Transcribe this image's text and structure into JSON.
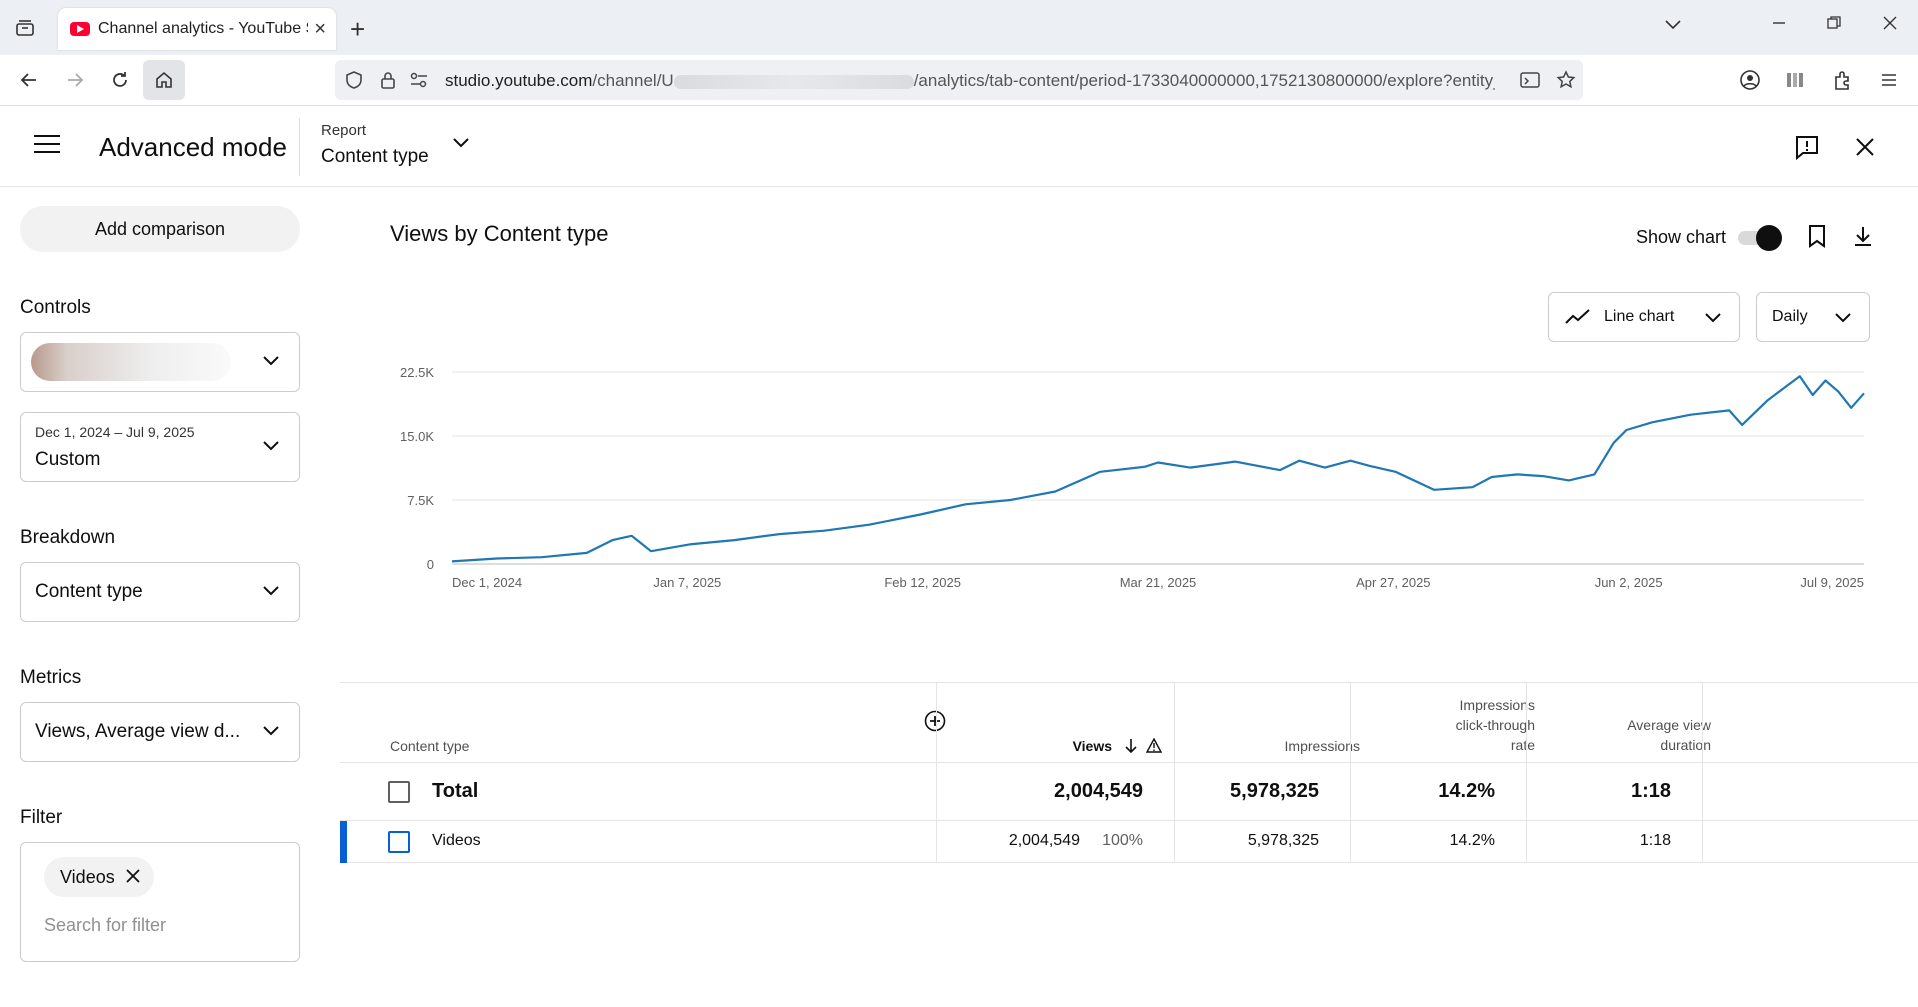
{
  "browser": {
    "tab_title": "Channel analytics - YouTube Studio",
    "url_host": "studio.youtube.com",
    "url_prefix": "/channel/U",
    "url_suffix": "/analytics/tab-content/period-1733040000000,1752130800000/explore?entity_"
  },
  "header": {
    "title": "Advanced mode",
    "report_label": "Report",
    "report_value": "Content type"
  },
  "sidebar": {
    "add_comparison": "Add comparison",
    "controls_label": "Controls",
    "date_range_caption": "Dec 1, 2024 – Jul 9, 2025",
    "date_range_value": "Custom",
    "breakdown_label": "Breakdown",
    "breakdown_value": "Content type",
    "metrics_label": "Metrics",
    "metrics_value": "Views, Average view d...",
    "filter_label": "Filter",
    "filter_chip": "Videos",
    "filter_placeholder": "Search for filter"
  },
  "main": {
    "title": "Views by Content type",
    "show_chart_label": "Show chart",
    "show_chart_on": true,
    "chart_type": "Line chart",
    "period": "Daily"
  },
  "chart_data": {
    "type": "line",
    "title": "",
    "xlabel": "",
    "ylabel": "",
    "ylim": [
      0,
      22500
    ],
    "y_ticks": [
      "0",
      "7.5K",
      "15.0K",
      "22.5K"
    ],
    "y_tick_values": [
      0,
      7500,
      15000,
      22500
    ],
    "x_ticks": [
      "Dec 1, 2024",
      "Jan 7, 2025",
      "Feb 12, 2025",
      "Mar 21, 2025",
      "Apr 27, 2025",
      "Jun 2, 2025",
      "Jul 9, 2025"
    ],
    "x_range": [
      "2024-12-01",
      "2025-07-09"
    ],
    "grid": true,
    "color": "#1f77b4",
    "series": [
      {
        "name": "",
        "x": [
          "2024-12-01",
          "2024-12-08",
          "2024-12-15",
          "2024-12-22",
          "2024-12-26",
          "2024-12-29",
          "2025-01-01",
          "2025-01-07",
          "2025-01-14",
          "2025-01-21",
          "2025-01-28",
          "2025-02-04",
          "2025-02-12",
          "2025-02-19",
          "2025-02-26",
          "2025-03-05",
          "2025-03-12",
          "2025-03-19",
          "2025-03-21",
          "2025-03-26",
          "2025-04-02",
          "2025-04-09",
          "2025-04-12",
          "2025-04-16",
          "2025-04-20",
          "2025-04-23",
          "2025-04-27",
          "2025-05-03",
          "2025-05-09",
          "2025-05-12",
          "2025-05-16",
          "2025-05-20",
          "2025-05-24",
          "2025-05-28",
          "2025-05-31",
          "2025-06-02",
          "2025-06-06",
          "2025-06-12",
          "2025-06-18",
          "2025-06-20",
          "2025-06-24",
          "2025-06-27",
          "2025-06-29",
          "2025-07-01",
          "2025-07-03",
          "2025-07-05",
          "2025-07-07",
          "2025-07-09"
        ],
        "values": [
          300,
          650,
          800,
          1300,
          2800,
          3300,
          1500,
          2300,
          2800,
          3500,
          3900,
          4600,
          5800,
          7000,
          7500,
          8500,
          10800,
          11400,
          11900,
          11300,
          12000,
          11000,
          12100,
          11300,
          12100,
          11500,
          10800,
          8700,
          9000,
          10200,
          10500,
          10300,
          9800,
          10500,
          14200,
          15700,
          16600,
          17500,
          18000,
          16300,
          19200,
          20900,
          22000,
          19800,
          21500,
          20200,
          18300,
          20000
        ]
      }
    ]
  },
  "table": {
    "columns": {
      "content_type": "Content type",
      "views": "Views",
      "impressions": "Impressions",
      "ctr_line1": "Impressions",
      "ctr_line2": "click-through",
      "ctr_line3": "rate",
      "avd_line1": "Average view",
      "avd_line2": "duration"
    },
    "total": {
      "label": "Total",
      "views": "2,004,549",
      "impressions": "5,978,325",
      "ctr": "14.2%",
      "avd": "1:18"
    },
    "rows": [
      {
        "label": "Videos",
        "views": "2,004,549",
        "views_pct": "100%",
        "impressions": "5,978,325",
        "ctr": "14.2%",
        "avd": "1:18"
      }
    ]
  }
}
